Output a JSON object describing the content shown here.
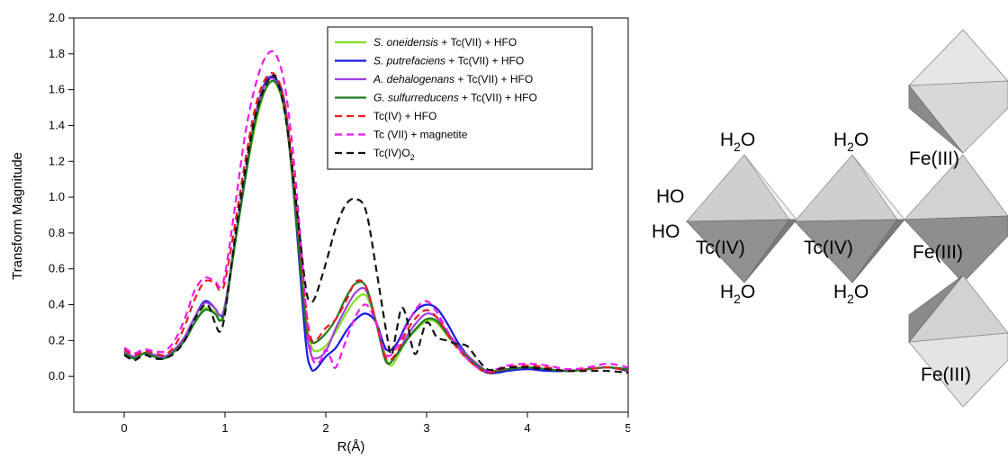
{
  "chart_data": {
    "type": "line",
    "title": "",
    "xlabel": "R(Å)",
    "ylabel": "Transform Magnitude",
    "xlim": [
      -0.5,
      5
    ],
    "ylim": [
      -0.2,
      2.0
    ],
    "xticks": [
      0,
      1,
      2,
      3,
      4,
      5
    ],
    "yticks": [
      0.0,
      0.2,
      0.4,
      0.6,
      0.8,
      1.0,
      1.2,
      1.4,
      1.6,
      1.8,
      2.0
    ],
    "grid": false,
    "legend_position": "top-right",
    "series": [
      {
        "name_italic": "S. oneidensis",
        "name_rest": " + Tc(VII) + HFO",
        "color": "#80e020",
        "dash": "solid",
        "x": [
          0,
          0.1,
          0.2,
          0.3,
          0.4,
          0.5,
          0.6,
          0.7,
          0.8,
          0.9,
          0.95,
          1.0,
          1.1,
          1.2,
          1.3,
          1.4,
          1.5,
          1.6,
          1.7,
          1.8,
          1.85,
          1.9,
          2.0,
          2.1,
          2.2,
          2.3,
          2.4,
          2.5,
          2.6,
          2.65,
          2.7,
          2.8,
          2.9,
          3.0,
          3.1,
          3.2,
          3.3,
          3.4,
          3.5,
          3.6,
          3.7,
          3.8,
          4.0,
          4.2,
          4.4,
          4.6,
          4.8,
          5.0
        ],
        "y": [
          0.13,
          0.1,
          0.13,
          0.11,
          0.11,
          0.14,
          0.2,
          0.3,
          0.38,
          0.36,
          0.32,
          0.38,
          0.75,
          1.1,
          1.4,
          1.6,
          1.64,
          1.45,
          0.95,
          0.35,
          0.18,
          0.14,
          0.17,
          0.25,
          0.35,
          0.43,
          0.45,
          0.3,
          0.1,
          0.06,
          0.1,
          0.2,
          0.26,
          0.31,
          0.3,
          0.23,
          0.17,
          0.12,
          0.07,
          0.03,
          0.03,
          0.04,
          0.05,
          0.04,
          0.03,
          0.04,
          0.05,
          0.04
        ]
      },
      {
        "name_italic": "S. putrefaciens",
        "name_rest": " + Tc(VII) + HFO",
        "color": "#1a1adc",
        "dash": "solid",
        "x": [
          0,
          0.1,
          0.2,
          0.3,
          0.4,
          0.5,
          0.6,
          0.7,
          0.8,
          0.9,
          0.95,
          1.0,
          1.1,
          1.2,
          1.3,
          1.4,
          1.5,
          1.6,
          1.7,
          1.8,
          1.85,
          1.9,
          2.0,
          2.1,
          2.2,
          2.3,
          2.4,
          2.5,
          2.6,
          2.7,
          2.8,
          2.9,
          3.0,
          3.1,
          3.2,
          3.3,
          3.4,
          3.5,
          3.6,
          3.7,
          3.8,
          4.0,
          4.2,
          4.4,
          4.6,
          4.8,
          5.0
        ],
        "y": [
          0.14,
          0.1,
          0.13,
          0.12,
          0.11,
          0.15,
          0.22,
          0.33,
          0.42,
          0.38,
          0.34,
          0.38,
          0.75,
          1.1,
          1.45,
          1.64,
          1.66,
          1.5,
          0.9,
          0.2,
          0.05,
          0.04,
          0.11,
          0.16,
          0.25,
          0.32,
          0.35,
          0.3,
          0.15,
          0.18,
          0.29,
          0.37,
          0.4,
          0.38,
          0.3,
          0.2,
          0.12,
          0.06,
          0.02,
          0.02,
          0.03,
          0.04,
          0.03,
          0.03,
          0.04,
          0.05,
          0.03
        ]
      },
      {
        "name_italic": "A. dehalogenans",
        "name_rest": " + Tc(VII) + HFO",
        "color": "#a040e0",
        "dash": "solid",
        "x": [
          0,
          0.1,
          0.2,
          0.3,
          0.4,
          0.5,
          0.6,
          0.7,
          0.8,
          0.9,
          0.95,
          1.0,
          1.1,
          1.2,
          1.3,
          1.4,
          1.5,
          1.6,
          1.7,
          1.8,
          1.85,
          1.9,
          2.0,
          2.1,
          2.2,
          2.3,
          2.4,
          2.5,
          2.6,
          2.7,
          2.8,
          2.9,
          3.0,
          3.1,
          3.2,
          3.3,
          3.4,
          3.5,
          3.6,
          3.7,
          3.8,
          4.0,
          4.2,
          4.4,
          4.6,
          4.8,
          5.0
        ],
        "y": [
          0.14,
          0.11,
          0.13,
          0.12,
          0.11,
          0.15,
          0.22,
          0.33,
          0.41,
          0.38,
          0.34,
          0.4,
          0.76,
          1.12,
          1.45,
          1.63,
          1.65,
          1.48,
          0.95,
          0.3,
          0.13,
          0.1,
          0.14,
          0.27,
          0.38,
          0.47,
          0.48,
          0.3,
          0.08,
          0.12,
          0.22,
          0.3,
          0.35,
          0.33,
          0.25,
          0.18,
          0.12,
          0.07,
          0.03,
          0.03,
          0.04,
          0.05,
          0.04,
          0.03,
          0.04,
          0.05,
          0.04
        ]
      },
      {
        "name_italic": "G. sulfurreducens",
        "name_rest": " + Tc(VII) + HFO",
        "color": "#1e7a1e",
        "dash": "solid",
        "x": [
          0,
          0.1,
          0.2,
          0.3,
          0.4,
          0.5,
          0.6,
          0.7,
          0.8,
          0.9,
          0.95,
          1.0,
          1.1,
          1.2,
          1.3,
          1.4,
          1.5,
          1.6,
          1.7,
          1.8,
          1.85,
          1.9,
          2.0,
          2.1,
          2.2,
          2.3,
          2.4,
          2.5,
          2.6,
          2.7,
          2.8,
          2.9,
          3.0,
          3.1,
          3.2,
          3.3,
          3.4,
          3.5,
          3.6,
          3.7,
          3.8,
          4.0,
          4.2,
          4.4,
          4.6,
          4.8,
          5.0
        ],
        "y": [
          0.13,
          0.1,
          0.13,
          0.11,
          0.1,
          0.14,
          0.2,
          0.3,
          0.37,
          0.35,
          0.31,
          0.37,
          0.74,
          1.1,
          1.42,
          1.6,
          1.64,
          1.46,
          0.92,
          0.3,
          0.2,
          0.19,
          0.24,
          0.32,
          0.44,
          0.52,
          0.5,
          0.3,
          0.08,
          0.12,
          0.2,
          0.27,
          0.32,
          0.31,
          0.24,
          0.17,
          0.11,
          0.06,
          0.03,
          0.03,
          0.04,
          0.05,
          0.04,
          0.03,
          0.04,
          0.05,
          0.04
        ]
      },
      {
        "name": "Tc(IV) + HFO",
        "color": "#e81c1c",
        "dash": "8,5",
        "x": [
          0,
          0.1,
          0.2,
          0.3,
          0.4,
          0.5,
          0.6,
          0.7,
          0.8,
          0.9,
          0.95,
          1.0,
          1.1,
          1.2,
          1.3,
          1.4,
          1.5,
          1.6,
          1.7,
          1.8,
          1.85,
          1.9,
          2.0,
          2.1,
          2.2,
          2.3,
          2.4,
          2.5,
          2.6,
          2.7,
          2.8,
          2.9,
          3.0,
          3.1,
          3.2,
          3.3,
          3.4,
          3.5,
          3.6,
          3.7,
          3.8,
          4.0,
          4.2,
          4.4,
          4.6,
          4.8,
          5.0
        ],
        "y": [
          0.15,
          0.12,
          0.14,
          0.13,
          0.12,
          0.17,
          0.28,
          0.43,
          0.53,
          0.52,
          0.48,
          0.53,
          0.85,
          1.2,
          1.5,
          1.66,
          1.68,
          1.5,
          1.0,
          0.4,
          0.22,
          0.2,
          0.27,
          0.32,
          0.42,
          0.53,
          0.5,
          0.3,
          0.1,
          0.13,
          0.25,
          0.33,
          0.37,
          0.33,
          0.24,
          0.16,
          0.1,
          0.05,
          0.02,
          0.03,
          0.05,
          0.06,
          0.05,
          0.03,
          0.04,
          0.05,
          0.03
        ]
      },
      {
        "name": "Tc (VII) + magnetite",
        "color": "#f018f0",
        "dash": "8,5",
        "x": [
          0,
          0.1,
          0.2,
          0.3,
          0.4,
          0.5,
          0.6,
          0.7,
          0.8,
          0.9,
          0.95,
          1.0,
          1.1,
          1.2,
          1.3,
          1.4,
          1.5,
          1.6,
          1.7,
          1.8,
          1.85,
          1.9,
          1.95,
          2.0,
          2.05,
          2.1,
          2.2,
          2.3,
          2.4,
          2.5,
          2.6,
          2.7,
          2.8,
          2.9,
          3.0,
          3.1,
          3.2,
          3.3,
          3.4,
          3.5,
          3.6,
          3.7,
          3.8,
          4.0,
          4.2,
          4.4,
          4.6,
          4.8,
          5.0
        ],
        "y": [
          0.16,
          0.13,
          0.15,
          0.14,
          0.14,
          0.2,
          0.32,
          0.48,
          0.55,
          0.53,
          0.5,
          0.57,
          0.95,
          1.35,
          1.62,
          1.78,
          1.8,
          1.6,
          1.1,
          0.4,
          0.14,
          0.07,
          0.09,
          0.15,
          0.1,
          0.05,
          0.2,
          0.34,
          0.4,
          0.3,
          0.12,
          0.16,
          0.28,
          0.38,
          0.42,
          0.36,
          0.26,
          0.17,
          0.1,
          0.05,
          0.03,
          0.04,
          0.06,
          0.07,
          0.06,
          0.04,
          0.05,
          0.07,
          0.05
        ]
      },
      {
        "name_pre": "Tc(IV)O",
        "name_sub": "2",
        "color": "#111111",
        "dash": "8,5",
        "x": [
          0,
          0.1,
          0.2,
          0.3,
          0.4,
          0.5,
          0.6,
          0.7,
          0.8,
          0.85,
          0.9,
          0.95,
          1.0,
          1.1,
          1.2,
          1.3,
          1.4,
          1.5,
          1.6,
          1.7,
          1.8,
          1.85,
          1.9,
          2.0,
          2.1,
          2.2,
          2.3,
          2.4,
          2.5,
          2.6,
          2.65,
          2.7,
          2.75,
          2.8,
          2.85,
          2.9,
          3.0,
          3.1,
          3.2,
          3.3,
          3.4,
          3.5,
          3.6,
          3.7,
          3.8,
          4.0,
          4.2,
          4.4,
          4.6,
          4.8,
          5.0
        ],
        "y": [
          0.12,
          0.09,
          0.12,
          0.1,
          0.1,
          0.13,
          0.2,
          0.32,
          0.4,
          0.38,
          0.3,
          0.25,
          0.35,
          0.78,
          1.15,
          1.45,
          1.62,
          1.67,
          1.45,
          1.0,
          0.5,
          0.42,
          0.45,
          0.63,
          0.83,
          0.96,
          0.99,
          0.92,
          0.6,
          0.25,
          0.12,
          0.25,
          0.38,
          0.33,
          0.18,
          0.13,
          0.3,
          0.22,
          0.2,
          0.18,
          0.17,
          0.1,
          0.04,
          0.04,
          0.05,
          0.05,
          0.04,
          0.03,
          0.03,
          0.03,
          0.02
        ]
      }
    ]
  },
  "structure": {
    "labels": {
      "h2o_top_left": {
        "pre": "H",
        "sub": "2",
        "post": "O"
      },
      "h2o_top_mid": {
        "pre": "H",
        "sub": "2",
        "post": "O"
      },
      "h2o_bot_left": {
        "pre": "H",
        "sub": "2",
        "post": "O"
      },
      "h2o_bot_mid": {
        "pre": "H",
        "sub": "2",
        "post": "O"
      },
      "ho_upper": "HO",
      "ho_lower": "HO",
      "tc_left": "Tc(IV)",
      "tc_mid": "Tc(IV)",
      "fe_top": "Fe(III)",
      "fe_mid": "Fe(III)",
      "fe_bottom": "Fe(III)"
    },
    "face_colors": {
      "light": "#e4e4e4",
      "medium": "#cfcfcf",
      "dark": "#8a8a8a",
      "darker": "#6e6e6e",
      "white": "#f7f7f7"
    }
  }
}
